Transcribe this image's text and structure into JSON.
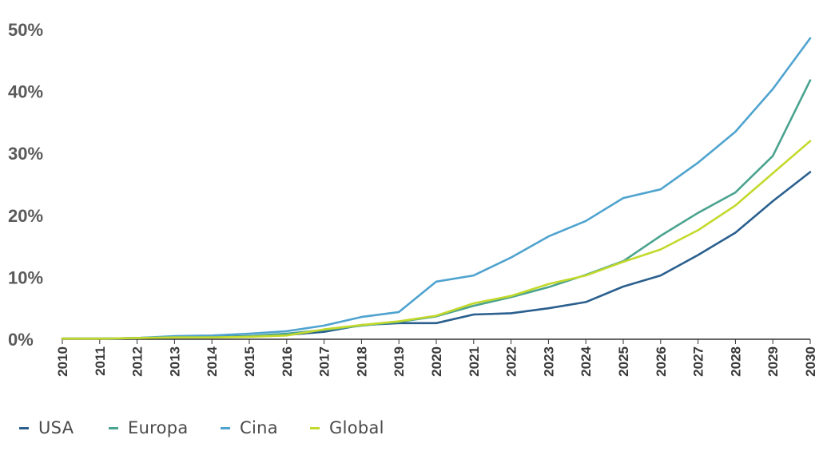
{
  "chart_data": {
    "type": "line",
    "x": [
      "2010",
      "2011",
      "2012",
      "2013",
      "2014",
      "2015",
      "2016",
      "2017",
      "2018",
      "2019",
      "2020",
      "2021",
      "2022",
      "2023",
      "2024",
      "2025",
      "2026",
      "2027",
      "2028",
      "2029",
      "2030"
    ],
    "ylim": [
      0,
      50
    ],
    "yticks": [
      {
        "value": 0,
        "label": "0%"
      },
      {
        "value": 10,
        "label": "10%"
      },
      {
        "value": 20,
        "label": "20%"
      },
      {
        "value": 30,
        "label": "30%"
      },
      {
        "value": 40,
        "label": "40%"
      },
      {
        "value": 50,
        "label": "50%"
      }
    ],
    "grid": false,
    "legend_position": "bottom-left",
    "series": [
      {
        "name": "USA",
        "color": "#2a5f8e",
        "values": [
          0.1,
          0.1,
          0.2,
          0.4,
          0.4,
          0.5,
          0.7,
          1.2,
          2.3,
          2.6,
          2.6,
          4.0,
          4.2,
          5.0,
          6.0,
          8.5,
          10.3,
          13.6,
          17.2,
          22.3,
          27.0
        ]
      },
      {
        "name": "Europa",
        "color": "#4aa38f",
        "values": [
          0.1,
          0.1,
          0.2,
          0.3,
          0.3,
          0.5,
          0.9,
          1.5,
          2.2,
          2.8,
          3.7,
          5.4,
          6.8,
          8.4,
          10.4,
          12.6,
          16.7,
          20.4,
          23.7,
          29.6,
          41.8
        ]
      },
      {
        "name": "Cina",
        "color": "#4fa3cf",
        "values": [
          0.1,
          0.1,
          0.2,
          0.5,
          0.6,
          0.9,
          1.3,
          2.2,
          3.6,
          4.4,
          9.3,
          10.3,
          13.2,
          16.6,
          19.1,
          22.8,
          24.2,
          28.5,
          33.5,
          40.4,
          48.6
        ]
      },
      {
        "name": "Global",
        "color": "#c3d92b",
        "values": [
          0.1,
          0.1,
          0.2,
          0.3,
          0.3,
          0.4,
          0.6,
          1.6,
          2.3,
          2.9,
          3.8,
          5.8,
          7.0,
          8.9,
          10.3,
          12.5,
          14.5,
          17.6,
          21.6,
          26.8,
          32.0
        ]
      }
    ]
  }
}
